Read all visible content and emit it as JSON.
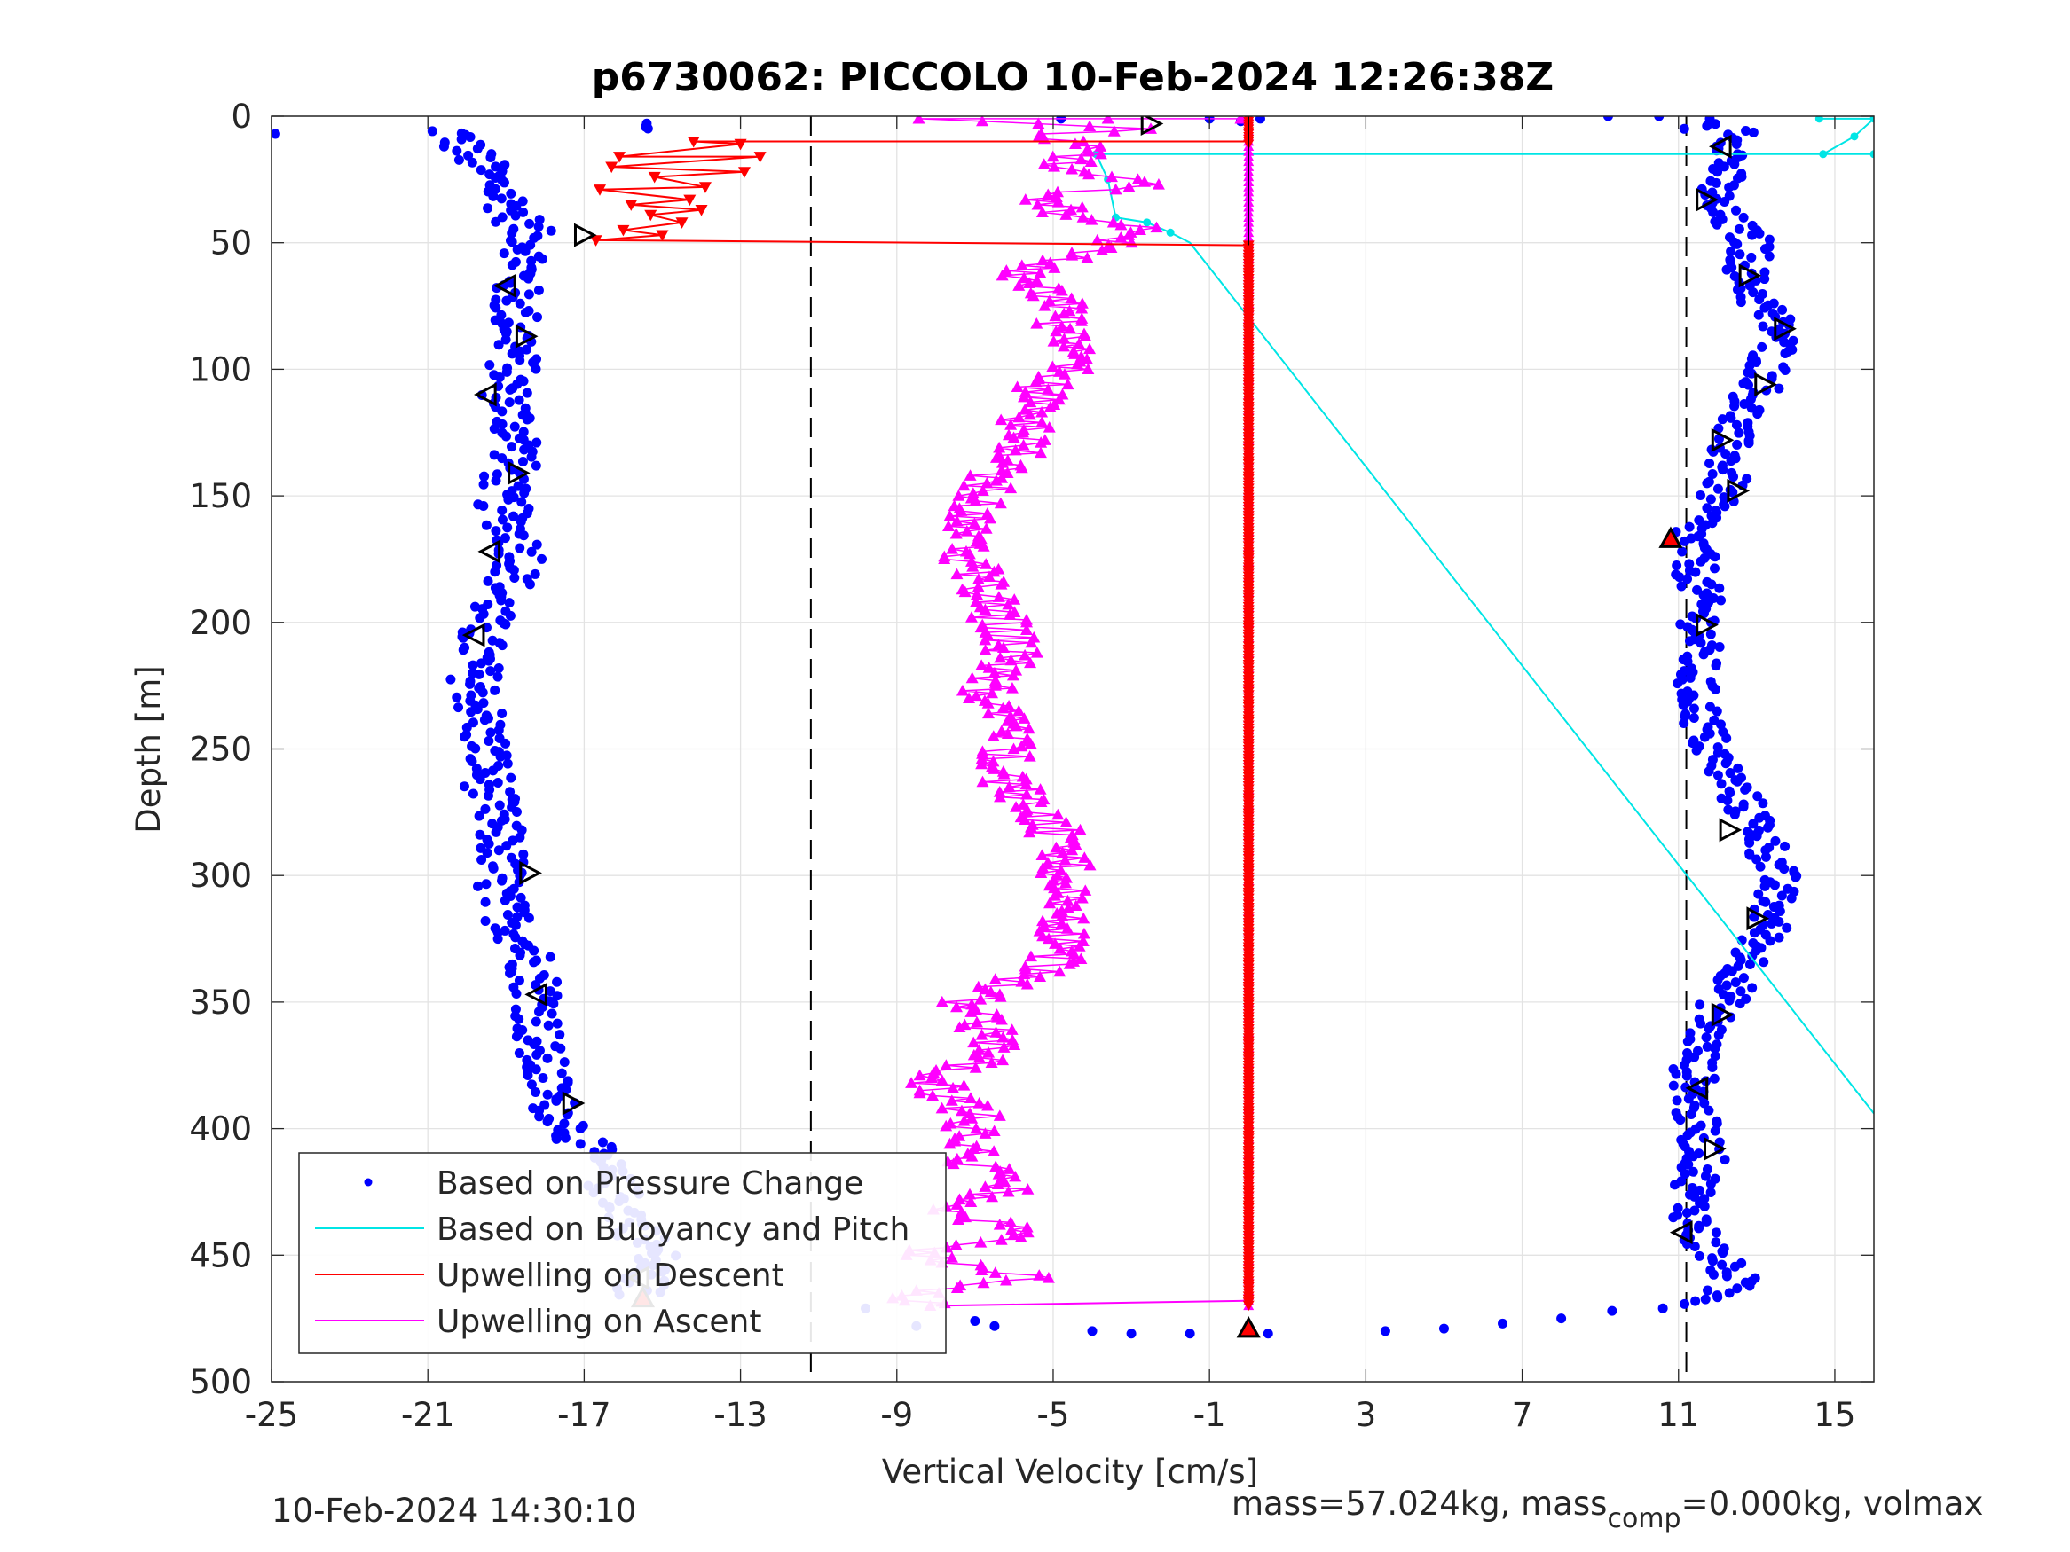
{
  "chart_data": {
    "type": "scatter",
    "title": "p6730062: PICCOLO 10-Feb-2024 12:26:38Z",
    "xlabel": "Vertical Velocity [cm/s]",
    "ylabel": "Depth [m]",
    "xlim": [
      -25,
      16
    ],
    "ylim": [
      0,
      500
    ],
    "y_reversed": true,
    "grid": true,
    "x_ticks": [
      "-25",
      "-21",
      "-17",
      "-13",
      "-9",
      "-5",
      "-1",
      "3",
      "7",
      "11",
      "15"
    ],
    "y_ticks": [
      "0",
      "50",
      "100",
      "150",
      "200",
      "250",
      "300",
      "350",
      "400",
      "450",
      "500"
    ],
    "legend_placement": "bottom-left",
    "dashed_reference_lines_x": [
      -11.2,
      11.2
    ],
    "colors": {
      "pressure": "#0000ff",
      "buoyancy": "#00e5e5",
      "upwell_descent": "#ff0000",
      "upwell_ascent": "#ff00ff",
      "grid": "#e3e3e3",
      "markers": "#000000"
    },
    "series": [
      {
        "name": "Based on Pressure Change",
        "marker": "dot",
        "description_of_shape": "two branches: descent branch near -19 to -16 cm/s, ascent branch near 11 to 14 cm/s",
        "descent_profile": [
          [
            -20.5,
            5
          ],
          [
            -19.6,
            20
          ],
          [
            -18.9,
            35
          ],
          [
            -18.3,
            50
          ],
          [
            -18.8,
            70
          ],
          [
            -18.7,
            90
          ],
          [
            -19.0,
            110
          ],
          [
            -18.6,
            130
          ],
          [
            -19.2,
            150
          ],
          [
            -18.5,
            175
          ],
          [
            -19.6,
            200
          ],
          [
            -19.8,
            220
          ],
          [
            -19.5,
            250
          ],
          [
            -19.4,
            270
          ],
          [
            -19.1,
            290
          ],
          [
            -19.2,
            310
          ],
          [
            -18.4,
            330
          ],
          [
            -18.1,
            350
          ],
          [
            -18.2,
            370
          ],
          [
            -17.8,
            390
          ],
          [
            -16.8,
            410
          ],
          [
            -16.0,
            430
          ],
          [
            -15.2,
            450
          ],
          [
            -15.6,
            465
          ]
        ],
        "ascent_profile": [
          [
            12.8,
            5
          ],
          [
            12.2,
            20
          ],
          [
            11.8,
            35
          ],
          [
            12.9,
            50
          ],
          [
            12.7,
            65
          ],
          [
            13.6,
            85
          ],
          [
            13.2,
            105
          ],
          [
            12.3,
            125
          ],
          [
            12.2,
            145
          ],
          [
            11.3,
            165
          ],
          [
            11.5,
            185
          ],
          [
            11.6,
            200
          ],
          [
            11.4,
            225
          ],
          [
            11.8,
            250
          ],
          [
            12.6,
            270
          ],
          [
            13.2,
            285
          ],
          [
            13.5,
            300
          ],
          [
            13.3,
            320
          ],
          [
            12.6,
            340
          ],
          [
            11.9,
            355
          ],
          [
            11.4,
            375
          ],
          [
            11.4,
            395
          ],
          [
            11.7,
            410
          ],
          [
            11.3,
            430
          ],
          [
            11.6,
            445
          ],
          [
            12.5,
            460
          ],
          [
            11.5,
            470
          ]
        ],
        "bottom_points": [
          [
            -9.8,
            471
          ],
          [
            -8.5,
            478
          ],
          [
            -7.0,
            476
          ],
          [
            -6.5,
            478
          ],
          [
            -4.0,
            480
          ],
          [
            -3.0,
            481
          ],
          [
            -1.5,
            481
          ],
          [
            0.5,
            481
          ],
          [
            3.5,
            480
          ],
          [
            5.0,
            479
          ],
          [
            6.5,
            477
          ],
          [
            8.0,
            475
          ],
          [
            9.3,
            472
          ],
          [
            10.6,
            471
          ]
        ],
        "surface_points": [
          [
            -24.9,
            7
          ],
          [
            -4.8,
            1
          ],
          [
            -1.0,
            1
          ],
          [
            -0.2,
            2
          ],
          [
            0.3,
            1
          ],
          [
            9.2,
            0
          ],
          [
            10.5,
            0
          ],
          [
            11.8,
            1
          ]
        ]
      },
      {
        "name": "Based on Buoyancy and Pitch",
        "marker": "line",
        "points": [
          [
            14.6,
            1
          ],
          [
            16.0,
            1
          ],
          [
            15.5,
            8
          ],
          [
            14.7,
            15
          ],
          [
            16.0,
            15
          ],
          [
            -3.9,
            15
          ],
          [
            -3.6,
            25
          ],
          [
            -3.4,
            40
          ],
          [
            -2.6,
            42
          ],
          [
            -2.0,
            46
          ],
          [
            -1.5,
            50
          ],
          [
            16.0,
            394
          ]
        ]
      },
      {
        "name": "Upwelling on Descent",
        "marker": "triangle-down",
        "points": [
          [
            0.0,
            10
          ],
          [
            -14.2,
            10
          ],
          [
            -13.0,
            11
          ],
          [
            -16.1,
            16
          ],
          [
            -12.5,
            16
          ],
          [
            -16.3,
            20
          ],
          [
            -12.9,
            22
          ],
          [
            -15.2,
            24
          ],
          [
            -13.9,
            28
          ],
          [
            -16.6,
            29
          ],
          [
            -14.3,
            33
          ],
          [
            -15.8,
            35
          ],
          [
            -14.0,
            37
          ],
          [
            -15.3,
            39
          ],
          [
            -14.5,
            42
          ],
          [
            -16.0,
            45
          ],
          [
            -15.0,
            47
          ],
          [
            -16.7,
            49
          ],
          [
            0.0,
            51
          ],
          [
            0.0,
            470
          ]
        ]
      },
      {
        "name": "Upwelling on Ascent",
        "marker": "triangle-up",
        "points": [
          [
            -8.0,
            470
          ],
          [
            -8.7,
            466
          ],
          [
            -5.4,
            458
          ],
          [
            -8.6,
            450
          ],
          [
            -5.5,
            440
          ],
          [
            -8.4,
            432
          ],
          [
            -6.2,
            425
          ],
          [
            -7.2,
            410
          ],
          [
            -7.0,
            395
          ],
          [
            -8.2,
            380
          ],
          [
            -6.3,
            370
          ],
          [
            -7.3,
            350
          ],
          [
            -4.9,
            335
          ],
          [
            -4.8,
            310
          ],
          [
            -4.6,
            295
          ],
          [
            -5.2,
            275
          ],
          [
            -6.5,
            260
          ],
          [
            -6.0,
            245
          ],
          [
            -6.8,
            230
          ],
          [
            -6.0,
            210
          ],
          [
            -6.5,
            195
          ],
          [
            -7.2,
            175
          ],
          [
            -7.3,
            160
          ],
          [
            -6.7,
            145
          ],
          [
            -5.8,
            130
          ],
          [
            -5.7,
            115
          ],
          [
            -4.8,
            100
          ],
          [
            -4.7,
            85
          ],
          [
            -5.0,
            70
          ],
          [
            -5.9,
            62
          ],
          [
            -4.6,
            55
          ],
          [
            -2.8,
            47
          ],
          [
            -2.2,
            45
          ],
          [
            -4.7,
            38
          ],
          [
            -5.4,
            30
          ],
          [
            -2.5,
            28
          ],
          [
            -4.9,
            20
          ],
          [
            -3.8,
            12
          ],
          [
            -5.6,
            8
          ],
          [
            -3.0,
            5
          ],
          [
            -8.1,
            1
          ],
          [
            -0.2,
            1
          ]
        ]
      },
      {
        "name": "dive_markers",
        "marker": "triangle-open",
        "points_left": [
          [
            -19.0,
            67
          ],
          [
            -19.5,
            110
          ],
          [
            -19.4,
            172
          ],
          [
            -19.8,
            205
          ],
          [
            -18.2,
            347
          ],
          [
            -15.6,
            459
          ],
          [
            11.1,
            441
          ],
          [
            11.5,
            384
          ],
          [
            12.1,
            12
          ]
        ],
        "points_right": [
          [
            -17.0,
            47
          ],
          [
            -18.5,
            87
          ],
          [
            -18.7,
            141
          ],
          [
            -18.4,
            299
          ],
          [
            -17.3,
            390
          ],
          [
            11.7,
            33
          ],
          [
            12.8,
            63
          ],
          [
            13.7,
            84
          ],
          [
            13.2,
            106
          ],
          [
            12.1,
            128
          ],
          [
            12.5,
            148
          ],
          [
            11.7,
            201
          ],
          [
            12.3,
            282
          ],
          [
            13.0,
            317
          ],
          [
            12.1,
            355
          ],
          [
            11.9,
            408
          ],
          [
            -2.5,
            3
          ]
        ]
      },
      {
        "name": "filled_triangle_markers",
        "marker": "triangle-filled",
        "points": [
          [
            -15.5,
            467
          ],
          [
            0.0,
            479
          ],
          [
            10.8,
            167
          ]
        ]
      }
    ]
  },
  "footer": {
    "timestamp": "10-Feb-2024 14:30:10",
    "mass_text_pre": "mass=57.024kg, mass",
    "mass_text_sub": "comp",
    "mass_text_post": "=0.000kg, volmax"
  }
}
